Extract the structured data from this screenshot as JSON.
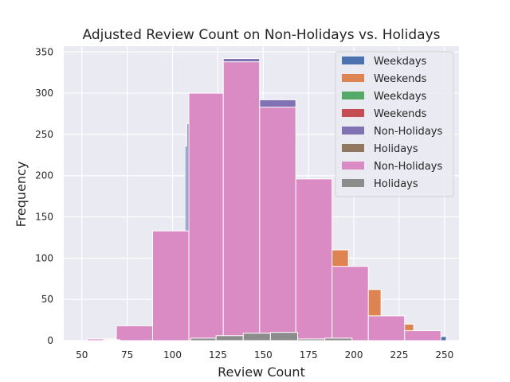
{
  "chart_data": {
    "type": "bar",
    "title": "Adjusted Review Count on Non-Holidays vs. Holidays",
    "xlabel": "Review Count",
    "ylabel": "Frequency",
    "xlim": [
      40,
      258
    ],
    "ylim": [
      0,
      357
    ],
    "xticks": [
      50,
      75,
      100,
      125,
      150,
      175,
      200,
      225,
      250
    ],
    "yticks": [
      0,
      50,
      100,
      150,
      200,
      250,
      300,
      350
    ],
    "grid": true,
    "legend_position": "top-right",
    "series": [
      {
        "name": "Weekdays",
        "color": "#4c72b0",
        "bins": [
          {
            "x0": 53,
            "x1": 71,
            "y": 2
          },
          {
            "x0": 71,
            "x1": 89,
            "y": 8
          },
          {
            "x0": 89,
            "x1": 107,
            "y": 77
          },
          {
            "x0": 107,
            "x1": 125,
            "y": 236
          },
          {
            "x0": 125,
            "x1": 143,
            "y": 300
          },
          {
            "x0": 143,
            "x1": 161,
            "y": 293
          },
          {
            "x0": 161,
            "x1": 179,
            "y": 196
          },
          {
            "x0": 179,
            "x1": 197,
            "y": 100
          },
          {
            "x0": 197,
            "x1": 215,
            "y": 50
          },
          {
            "x0": 215,
            "x1": 233,
            "y": 20
          },
          {
            "x0": 233,
            "x1": 251,
            "y": 5
          }
        ]
      },
      {
        "name": "Weekends",
        "color": "#dd8452",
        "bins": [
          {
            "x0": 179,
            "x1": 197,
            "y": 110
          },
          {
            "x0": 197,
            "x1": 215,
            "y": 62
          },
          {
            "x0": 215,
            "x1": 233,
            "y": 20
          }
        ]
      },
      {
        "name": "Weekdays",
        "color": "#55a868",
        "bins": []
      },
      {
        "name": "Weekends",
        "color": "#c44e52",
        "bins": []
      },
      {
        "name": "Non-Holidays",
        "color": "#8172b3",
        "bins": [
          {
            "x0": 108,
            "x1": 128,
            "y": 263
          },
          {
            "x0": 128,
            "x1": 148,
            "y": 342
          },
          {
            "x0": 148,
            "x1": 168,
            "y": 292
          }
        ]
      },
      {
        "name": "Holidays",
        "color": "#937860",
        "bins": []
      },
      {
        "name": "Non-Holidays",
        "color": "#da8bc3",
        "bins": [
          {
            "x0": 53,
            "x1": 69,
            "y": 2
          },
          {
            "x0": 69,
            "x1": 89,
            "y": 18
          },
          {
            "x0": 89,
            "x1": 109,
            "y": 133
          },
          {
            "x0": 109,
            "x1": 128,
            "y": 300
          },
          {
            "x0": 128,
            "x1": 148,
            "y": 338
          },
          {
            "x0": 148,
            "x1": 168,
            "y": 283
          },
          {
            "x0": 168,
            "x1": 188,
            "y": 196
          },
          {
            "x0": 188,
            "x1": 208,
            "y": 90
          },
          {
            "x0": 208,
            "x1": 228,
            "y": 30
          },
          {
            "x0": 228,
            "x1": 248,
            "y": 12
          }
        ]
      },
      {
        "name": "Holidays",
        "color": "#8c8c8c",
        "bins": [
          {
            "x0": 62,
            "x1": 71,
            "y": 1
          },
          {
            "x0": 110,
            "x1": 124,
            "y": 3
          },
          {
            "x0": 124,
            "x1": 139,
            "y": 6
          },
          {
            "x0": 139,
            "x1": 154,
            "y": 9
          },
          {
            "x0": 154,
            "x1": 169,
            "y": 10
          },
          {
            "x0": 169,
            "x1": 184,
            "y": 2
          },
          {
            "x0": 184,
            "x1": 199,
            "y": 3
          }
        ]
      }
    ]
  }
}
